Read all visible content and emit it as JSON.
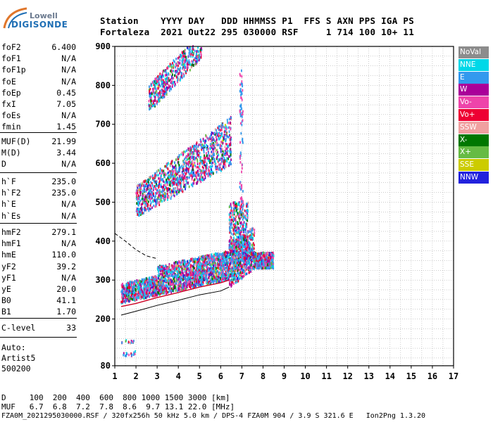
{
  "logo": {
    "line1": "Lowell",
    "line2": "DIGISONDE"
  },
  "header": {
    "row1": "Station    YYYY DAY   DDD HHMMSS P1  FFS S AXN PPS IGA PS",
    "row2": "Fortaleza  2021 Out22 295 030000 RSF     1 714 100 10+ 11"
  },
  "params_group1": [
    {
      "label": "foF2",
      "value": "6.400"
    },
    {
      "label": "foF1",
      "value": "N/A"
    },
    {
      "label": "foF1p",
      "value": "N/A"
    },
    {
      "label": "foE",
      "value": "N/A"
    },
    {
      "label": "foEp",
      "value": "0.45"
    },
    {
      "label": "fxI",
      "value": "7.05"
    },
    {
      "label": "foEs",
      "value": "N/A"
    },
    {
      "label": "fmin",
      "value": "1.45"
    }
  ],
  "params_group2": [
    {
      "label": "MUF(D)",
      "value": "21.99"
    },
    {
      "label": "M(D)",
      "value": "3.44"
    },
    {
      "label": "D",
      "value": "N/A"
    }
  ],
  "params_group3": [
    {
      "label": "h`F",
      "value": "235.0"
    },
    {
      "label": "h`F2",
      "value": "235.0"
    },
    {
      "label": "h`E",
      "value": "N/A"
    },
    {
      "label": "h`Es",
      "value": "N/A"
    }
  ],
  "params_group4": [
    {
      "label": "hmF2",
      "value": "279.1"
    },
    {
      "label": "hmF1",
      "value": "N/A"
    },
    {
      "label": "hmE",
      "value": "110.0"
    },
    {
      "label": "yF2",
      "value": "39.2"
    },
    {
      "label": "yF1",
      "value": "N/A"
    },
    {
      "label": "yE",
      "value": "20.0"
    },
    {
      "label": "B0",
      "value": "41.1"
    },
    {
      "label": "B1",
      "value": "1.70"
    }
  ],
  "params_group5": [
    {
      "label": "C-level",
      "value": "33"
    }
  ],
  "auto": {
    "line1": "Auto:",
    "line2": "Artist5",
    "line3": "500200"
  },
  "legend": [
    {
      "label": "NoVal",
      "color": "#8c8c8c"
    },
    {
      "label": "NNE",
      "color": "#00d8e8"
    },
    {
      "label": "E",
      "color": "#3399ee"
    },
    {
      "label": "W",
      "color": "#aa0099"
    },
    {
      "label": "Vo-",
      "color": "#ee44aa"
    },
    {
      "label": "Vo+",
      "color": "#ee0033"
    },
    {
      "label": "SSW",
      "color": "#f0a0a0"
    },
    {
      "label": "X-",
      "color": "#007700"
    },
    {
      "label": "X+",
      "color": "#66bb44"
    },
    {
      "label": "SSE",
      "color": "#cccc00"
    },
    {
      "label": "NNW",
      "color": "#2222dd"
    }
  ],
  "footer": {
    "line1": "D     100  200  400  600  800 1000 1500 3000 [km]",
    "line2": "MUF   6.7  6.8  7.2  7.8  8.6  9.7 13.1 22.0 [MHz]",
    "line3": "FZA0M_2021295030000.RSF / 320fx256h 50 kHz 5.0 km / DPS-4 FZA0M 904 / 3.9 S 321.6 E   Ion2Png 1.3.20"
  },
  "chart_data": {
    "type": "scatter",
    "title": "",
    "xlabel": "",
    "ylabel": "",
    "xlim": [
      1,
      17
    ],
    "ylim": [
      80,
      900
    ],
    "xticks": [
      1,
      2,
      3,
      4,
      5,
      6,
      7,
      8,
      9,
      10,
      11,
      12,
      13,
      14,
      15,
      16,
      17
    ],
    "yticks": [
      80,
      200,
      300,
      400,
      500,
      600,
      700,
      800,
      900
    ],
    "grid": true,
    "legend_placement": "right",
    "clusters": [
      {
        "name": "F2 trace main",
        "freq_range": [
          1.3,
          8.5
        ],
        "height_base": [
          240,
          300
        ],
        "height_spread": 70
      },
      {
        "name": "cusp near foF2",
        "freq_range": [
          6.4,
          7.3
        ],
        "height_range": [
          330,
          500
        ]
      },
      {
        "name": "second hop",
        "freq_range": [
          2.0,
          6.5
        ],
        "height_range": [
          480,
          680
        ]
      },
      {
        "name": "third hop",
        "freq_range": [
          2.6,
          5.2
        ],
        "height_range": [
          720,
          900
        ]
      },
      {
        "name": "low echoes",
        "freq_range": [
          1.3,
          2.0
        ],
        "height_range": [
          100,
          150
        ]
      }
    ],
    "profile_lines": [
      {
        "name": "true height profile",
        "x": [
          1.3,
          2.0,
          3.0,
          4.0,
          5.0,
          6.0,
          6.4
        ],
        "y": [
          210,
          220,
          235,
          248,
          262,
          272,
          282
        ]
      },
      {
        "name": "upper profile",
        "x": [
          1.3,
          2.0,
          3.0,
          4.0,
          5.0,
          6.0,
          6.4
        ],
        "y": [
          232,
          240,
          255,
          268,
          282,
          293,
          300
        ]
      },
      {
        "name": "dashed extrapolation",
        "x": [
          1.0,
          1.5,
          2.0,
          2.5,
          3.0
        ],
        "y": [
          420,
          400,
          378,
          362,
          355
        ]
      }
    ],
    "fill_colors_note": "Echo points colored by polarization / direction legend"
  }
}
